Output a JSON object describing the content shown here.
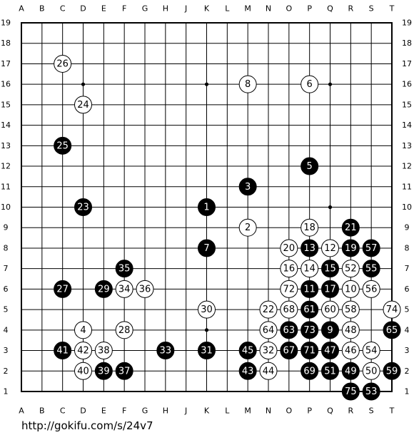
{
  "board": {
    "columns": [
      "A",
      "B",
      "C",
      "D",
      "E",
      "F",
      "G",
      "H",
      "J",
      "K",
      "L",
      "M",
      "N",
      "O",
      "P",
      "Q",
      "R",
      "S",
      "T"
    ],
    "rows": [
      19,
      18,
      17,
      16,
      15,
      14,
      13,
      12,
      11,
      10,
      9,
      8,
      7,
      6,
      5,
      4,
      3,
      2,
      1
    ],
    "stones": [
      {
        "col": "K",
        "row": 10,
        "color": "black",
        "number": 1
      },
      {
        "col": "M",
        "row": 9,
        "color": "white",
        "number": 2
      },
      {
        "col": "M",
        "row": 11,
        "color": "black",
        "number": 3
      },
      {
        "col": "D",
        "row": 4,
        "color": "white",
        "number": 4
      },
      {
        "col": "P",
        "row": 12,
        "color": "black",
        "number": 5
      },
      {
        "col": "P",
        "row": 16,
        "color": "white",
        "number": 6
      },
      {
        "col": "K",
        "row": 8,
        "color": "black",
        "number": 7
      },
      {
        "col": "M",
        "row": 16,
        "color": "white",
        "number": 8
      },
      {
        "col": "Q",
        "row": 4,
        "color": "black",
        "number": 9
      },
      {
        "col": "R",
        "row": 6,
        "color": "white",
        "number": 10
      },
      {
        "col": "P",
        "row": 6,
        "color": "black",
        "number": 11
      },
      {
        "col": "Q",
        "row": 8,
        "color": "white",
        "number": 12
      },
      {
        "col": "P",
        "row": 8,
        "color": "black",
        "number": 13
      },
      {
        "col": "P",
        "row": 7,
        "color": "white",
        "number": 14
      },
      {
        "col": "Q",
        "row": 7,
        "color": "black",
        "number": 15
      },
      {
        "col": "O",
        "row": 7,
        "color": "white",
        "number": 16
      },
      {
        "col": "Q",
        "row": 6,
        "color": "black",
        "number": 17
      },
      {
        "col": "P",
        "row": 9,
        "color": "white",
        "number": 18
      },
      {
        "col": "R",
        "row": 8,
        "color": "black",
        "number": 19
      },
      {
        "col": "O",
        "row": 8,
        "color": "white",
        "number": 20
      },
      {
        "col": "R",
        "row": 9,
        "color": "black",
        "number": 21
      },
      {
        "col": "N",
        "row": 5,
        "color": "white",
        "number": 22
      },
      {
        "col": "D",
        "row": 10,
        "color": "black",
        "number": 23
      },
      {
        "col": "D",
        "row": 15,
        "color": "white",
        "number": 24
      },
      {
        "col": "C",
        "row": 13,
        "color": "black",
        "number": 25
      },
      {
        "col": "C",
        "row": 17,
        "color": "white",
        "number": 26
      },
      {
        "col": "C",
        "row": 6,
        "color": "black",
        "number": 27
      },
      {
        "col": "F",
        "row": 4,
        "color": "white",
        "number": 28
      },
      {
        "col": "E",
        "row": 6,
        "color": "black",
        "number": 29
      },
      {
        "col": "K",
        "row": 5,
        "color": "white",
        "number": 30
      },
      {
        "col": "K",
        "row": 3,
        "color": "black",
        "number": 31
      },
      {
        "col": "N",
        "row": 3,
        "color": "white",
        "number": 32
      },
      {
        "col": "H",
        "row": 3,
        "color": "black",
        "number": 33
      },
      {
        "col": "F",
        "row": 6,
        "color": "white",
        "number": 34
      },
      {
        "col": "F",
        "row": 7,
        "color": "black",
        "number": 35
      },
      {
        "col": "G",
        "row": 6,
        "color": "white",
        "number": 36
      },
      {
        "col": "F",
        "row": 2,
        "color": "black",
        "number": 37
      },
      {
        "col": "E",
        "row": 3,
        "color": "white",
        "number": 38
      },
      {
        "col": "E",
        "row": 2,
        "color": "black",
        "number": 39
      },
      {
        "col": "D",
        "row": 2,
        "color": "white",
        "number": 40
      },
      {
        "col": "C",
        "row": 3,
        "color": "black",
        "number": 41
      },
      {
        "col": "D",
        "row": 3,
        "color": "white",
        "number": 42
      },
      {
        "col": "M",
        "row": 2,
        "color": "black",
        "number": 43
      },
      {
        "col": "N",
        "row": 2,
        "color": "white",
        "number": 44
      },
      {
        "col": "M",
        "row": 3,
        "color": "black",
        "number": 45
      },
      {
        "col": "R",
        "row": 3,
        "color": "white",
        "number": 46
      },
      {
        "col": "Q",
        "row": 3,
        "color": "black",
        "number": 47
      },
      {
        "col": "R",
        "row": 4,
        "color": "white",
        "number": 48
      },
      {
        "col": "R",
        "row": 2,
        "color": "black",
        "number": 49
      },
      {
        "col": "S",
        "row": 2,
        "color": "white",
        "number": 50
      },
      {
        "col": "Q",
        "row": 2,
        "color": "black",
        "number": 51
      },
      {
        "col": "R",
        "row": 7,
        "color": "white",
        "number": 52
      },
      {
        "col": "S",
        "row": 1,
        "color": "black",
        "number": 53
      },
      {
        "col": "S",
        "row": 3,
        "color": "white",
        "number": 54
      },
      {
        "col": "S",
        "row": 7,
        "color": "black",
        "number": 55
      },
      {
        "col": "S",
        "row": 6,
        "color": "white",
        "number": 56
      },
      {
        "col": "S",
        "row": 8,
        "color": "black",
        "number": 57
      },
      {
        "col": "R",
        "row": 5,
        "color": "white",
        "number": 58
      },
      {
        "col": "T",
        "row": 2,
        "color": "black",
        "number": 59
      },
      {
        "col": "Q",
        "row": 5,
        "color": "white",
        "number": 60
      },
      {
        "col": "P",
        "row": 5,
        "color": "black",
        "number": 61
      },
      {
        "col": "O",
        "row": 4,
        "color": "black",
        "number": 63
      },
      {
        "col": "N",
        "row": 4,
        "color": "white",
        "number": 64
      },
      {
        "col": "T",
        "row": 4,
        "color": "black",
        "number": 65
      },
      {
        "col": "O",
        "row": 3,
        "color": "black",
        "number": 67
      },
      {
        "col": "O",
        "row": 5,
        "color": "white",
        "number": 68
      },
      {
        "col": "P",
        "row": 2,
        "color": "black",
        "number": 69
      },
      {
        "col": "P",
        "row": 3,
        "color": "black",
        "number": 71
      },
      {
        "col": "O",
        "row": 6,
        "color": "white",
        "number": 72
      },
      {
        "col": "P",
        "row": 4,
        "color": "black",
        "number": 73
      },
      {
        "col": "T",
        "row": 5,
        "color": "white",
        "number": 74
      },
      {
        "col": "R",
        "row": 1,
        "color": "black",
        "number": 75
      }
    ],
    "url": "http://gokifu.com/s/24v7"
  }
}
